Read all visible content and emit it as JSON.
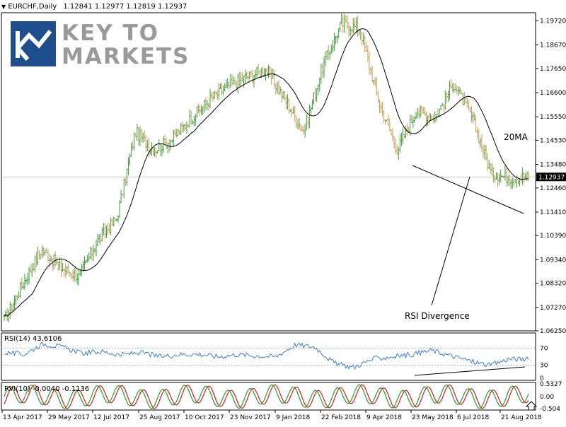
{
  "colors": {
    "bull": "#3a9e3a",
    "bear": "#c69a55",
    "ma": "#000000",
    "rsi": "#3c7fd6",
    "rvi_main": "#2a9a2a",
    "rvi_signal": "#d41a1a",
    "grid": "#c9c9c9",
    "trend": "#000000"
  },
  "header": {
    "symbol": "EURCHF,Daily",
    "ohlc": "1.12841 1.12977 1.12819 1.12937",
    "collapse_icon": "triangle-down-icon"
  },
  "logo": {
    "line1": "KEY TO",
    "line2": "MARKETS",
    "mark_icon": "key-to-markets-logo-icon"
  },
  "annotations": {
    "ma_label": "20MA",
    "divergence_label": "RSI Divergence"
  },
  "rsi_header": "RSI(14) 43.6106",
  "rvi_header": "RVI(10) -0.0040 -0.1136",
  "current_price_label": "1.12937",
  "chart_data": {
    "type": "bar",
    "title": "EURCHF,Daily",
    "x_labels": [
      "13 Apr 2017",
      "29 May 2017",
      "12 Jul 2017",
      "25 Aug 2017",
      "10 Oct 2017",
      "23 Nov 2017",
      "9 Jan 2018",
      "22 Feb 2018",
      "9 Apr 2018",
      "23 May 2018",
      "6 Jul 2018",
      "21 Aug 2018"
    ],
    "y_ticks": [
      "1.19720",
      "1.18670",
      "1.17650",
      "1.16600",
      "1.15550",
      "1.14530",
      "1.13480",
      "1.12460",
      "1.11410",
      "1.10390",
      "1.09340",
      "1.08320",
      "1.07270",
      "1.06250"
    ],
    "ylim": [
      1.0625,
      1.2007
    ],
    "current_price": 1.12937,
    "price_series_anchors": [
      {
        "date": "13 Apr 2017",
        "close": 1.067
      },
      {
        "date": "20 Apr 2017",
        "close": 1.083
      },
      {
        "date": "5 May 2017",
        "close": 1.098
      },
      {
        "date": "29 May 2017",
        "close": 1.09
      },
      {
        "date": "15 Jun 2017",
        "close": 1.086
      },
      {
        "date": "5 Jul 2017",
        "close": 1.102
      },
      {
        "date": "12 Jul 2017",
        "close": 1.111
      },
      {
        "date": "22 Jul 2017",
        "close": 1.149
      },
      {
        "date": "10 Aug 2017",
        "close": 1.141
      },
      {
        "date": "25 Aug 2017",
        "close": 1.146
      },
      {
        "date": "15 Sep 2017",
        "close": 1.155
      },
      {
        "date": "10 Oct 2017",
        "close": 1.163
      },
      {
        "date": "23 Nov 2017",
        "close": 1.169
      },
      {
        "date": "15 Dec 2017",
        "close": 1.173
      },
      {
        "date": "9 Jan 2018",
        "close": 1.176
      },
      {
        "date": "25 Jan 2018",
        "close": 1.163
      },
      {
        "date": "22 Feb 2018",
        "close": 1.149
      },
      {
        "date": "20 Mar 2018",
        "close": 1.177
      },
      {
        "date": "9 Apr 2018",
        "close": 1.196
      },
      {
        "date": "25 Apr 2018",
        "close": 1.194
      },
      {
        "date": "15 May 2018",
        "close": 1.162
      },
      {
        "date": "23 May 2018",
        "close": 1.141
      },
      {
        "date": "6 Jun 2018",
        "close": 1.158
      },
      {
        "date": "20 Jun 2018",
        "close": 1.155
      },
      {
        "date": "6 Jul 2018",
        "close": 1.17
      },
      {
        "date": "25 Jul 2018",
        "close": 1.155
      },
      {
        "date": "10 Aug 2018",
        "close": 1.131
      },
      {
        "date": "21 Aug 2018",
        "close": 1.129
      },
      {
        "date": "1 Sep 2018",
        "close": 1.1294
      }
    ],
    "ma_period": 20,
    "rsi": {
      "name": "RSI(14)",
      "last": 43.6106,
      "levels": [
        70,
        30
      ],
      "ylim": [
        0,
        100
      ],
      "ticks": [
        "70",
        "30",
        "0"
      ],
      "anchors": [
        60,
        55,
        80,
        72,
        58,
        62,
        54,
        60,
        50,
        55,
        56,
        50,
        55,
        52,
        50,
        78,
        72,
        35,
        25,
        45,
        50,
        55,
        65,
        52,
        40,
        30,
        45,
        43.6
      ]
    },
    "rvi": {
      "name": "RVI(10)",
      "main": -0.004,
      "signal": -0.1136,
      "ticks": [
        "0.5327",
        "0.00",
        "-0.504"
      ],
      "ylim": [
        -0.504,
        0.5327
      ]
    }
  }
}
